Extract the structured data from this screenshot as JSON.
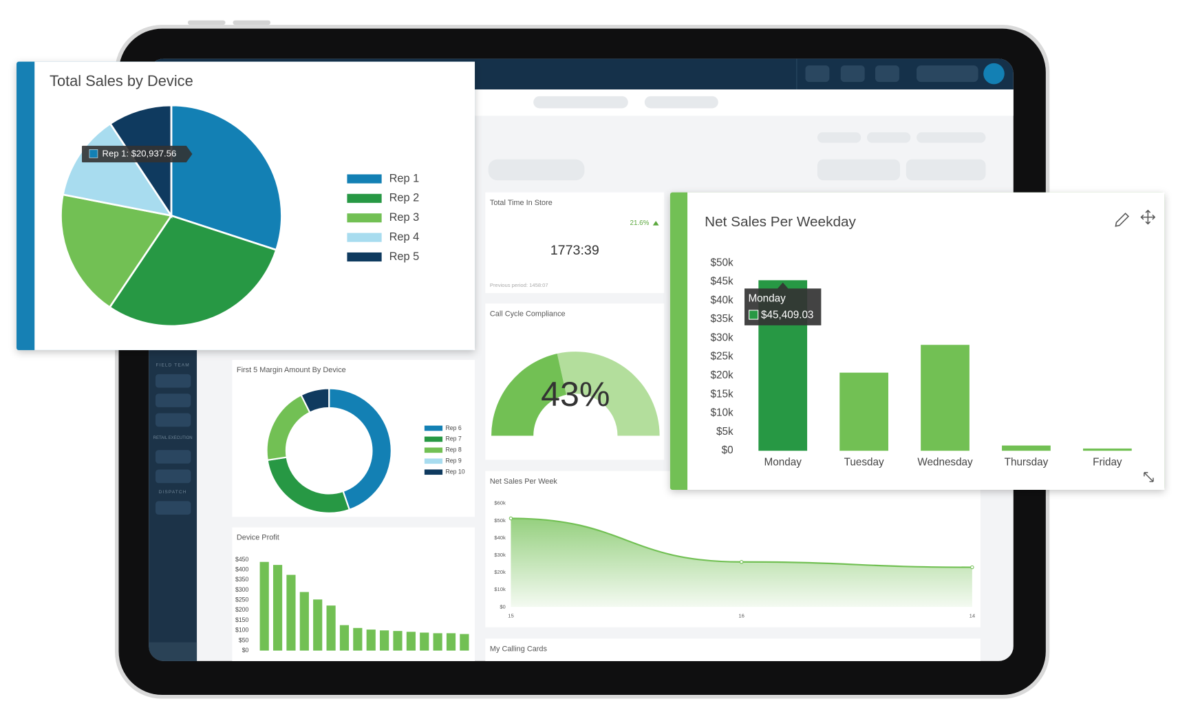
{
  "sidebar": {
    "sections": [
      "FIELD TEAM",
      "RETAIL EXECUTION",
      "DISPATCH"
    ]
  },
  "widgets": {
    "time_in_store": {
      "title": "Total Time In Store",
      "value": "1773:39",
      "change": "21.6%",
      "previous": "Previous period: 1458:07"
    },
    "calling_cards": {
      "title": "My Calling Cards"
    }
  },
  "chart_data": [
    {
      "type": "pie",
      "title": "Total Sales by Device",
      "categories": [
        "Rep 1",
        "Rep 2",
        "Rep 3",
        "Rep 4",
        "Rep 5"
      ],
      "values": [
        20937.56,
        20500,
        13000,
        8800,
        6500
      ],
      "colors": [
        "#1380b4",
        "#279844",
        "#72c054",
        "#a8dcef",
        "#0f3a5f"
      ],
      "tooltip": "Rep 1: $20,937.56"
    },
    {
      "type": "donut",
      "title": "First 5 Margin Amount By Device",
      "categories": [
        "Rep 6",
        "Rep 7",
        "Rep 8",
        "Rep 9",
        "Rep 10"
      ],
      "values": [
        44.7,
        27.9,
        20,
        0,
        7.4
      ],
      "colors": [
        "#1380b4",
        "#279844",
        "#72c054",
        "#a8dcef",
        "#0f3a5f"
      ]
    },
    {
      "type": "gauge",
      "title": "Call Cycle Compliance",
      "value": 43,
      "value_label": "43%",
      "ylim": [
        0,
        100
      ],
      "colors": [
        "#72c054",
        "#b3de9c"
      ]
    },
    {
      "type": "bar",
      "title": "Device Profit",
      "values": [
        439,
        424,
        375,
        290,
        253,
        223,
        126,
        112,
        104,
        100,
        97,
        93,
        89,
        86,
        86,
        82
      ],
      "color": "#72c054",
      "ylim": [
        0,
        450
      ],
      "yticks": [
        {
          "value": 0,
          "label": "$0"
        },
        {
          "value": 50,
          "label": "$50"
        },
        {
          "value": 100,
          "label": "$100"
        },
        {
          "value": 150,
          "label": "$150"
        },
        {
          "value": 200,
          "label": "$200"
        },
        {
          "value": 250,
          "label": "$250"
        },
        {
          "value": 300,
          "label": "$300"
        },
        {
          "value": 350,
          "label": "$350"
        },
        {
          "value": 400,
          "label": "$400"
        },
        {
          "value": 450,
          "label": "$450"
        }
      ]
    },
    {
      "type": "area",
      "title": "Net Sales Per Week",
      "categories": [
        "15",
        "16",
        "14"
      ],
      "values": [
        51300,
        26100,
        23000
      ],
      "color": "#72c054",
      "ylim": [
        0,
        60000
      ],
      "yticks": [
        {
          "value": 0,
          "label": "$0"
        },
        {
          "value": 10000,
          "label": "$10k"
        },
        {
          "value": 20000,
          "label": "$20k"
        },
        {
          "value": 30000,
          "label": "$30k"
        },
        {
          "value": 40000,
          "label": "$40k"
        },
        {
          "value": 50000,
          "label": "$50k"
        },
        {
          "value": 60000,
          "label": "$60k"
        }
      ]
    },
    {
      "type": "bar",
      "title": "Net Sales Per Weekday",
      "categories": [
        "Monday",
        "Tuesday",
        "Wednesday",
        "Thursday",
        "Friday"
      ],
      "values": [
        45409.03,
        20800,
        28200,
        1400,
        600
      ],
      "colors": [
        "#279844",
        "#72c054",
        "#72c054",
        "#72c054",
        "#72c054"
      ],
      "ylim": [
        0,
        50000
      ],
      "yticks": [
        {
          "value": 0,
          "label": "$0"
        },
        {
          "value": 5000,
          "label": "$5k"
        },
        {
          "value": 10000,
          "label": "$10k"
        },
        {
          "value": 15000,
          "label": "$15k"
        },
        {
          "value": 20000,
          "label": "$20k"
        },
        {
          "value": 25000,
          "label": "$25k"
        },
        {
          "value": 30000,
          "label": "$30k"
        },
        {
          "value": 35000,
          "label": "$35k"
        },
        {
          "value": 40000,
          "label": "$40k"
        },
        {
          "value": 45000,
          "label": "$45k"
        },
        {
          "value": 50000,
          "label": "$50k"
        }
      ],
      "tooltip": {
        "title": "Monday",
        "value": "$45,409.03"
      }
    }
  ]
}
